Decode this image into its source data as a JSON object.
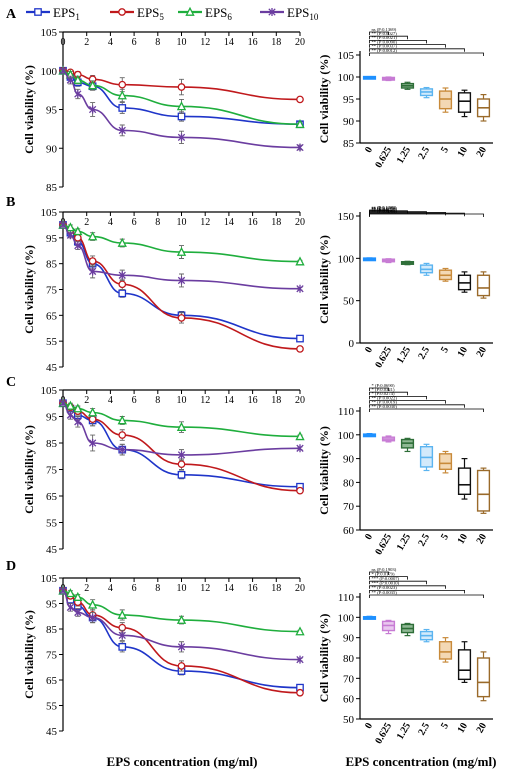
{
  "figure": {
    "x_axis_label": "EPS concentration (mg/ml)",
    "legend": [
      {
        "label_main": "EPS",
        "label_sub": "1",
        "color": "#1f35c9",
        "marker": "square"
      },
      {
        "label_main": "EPS",
        "label_sub": "5",
        "color": "#c0191c",
        "marker": "circle"
      },
      {
        "label_main": "EPS",
        "label_sub": "6",
        "color": "#1fae3d",
        "marker": "triangle"
      },
      {
        "label_main": "EPS",
        "label_sub": "10",
        "color": "#6b3da0",
        "marker": "star"
      }
    ]
  },
  "chart_data": [
    {
      "panel": "A",
      "type": "line",
      "ylabel": "Cell viability (%)",
      "x": [
        0,
        0.625,
        1.25,
        2.5,
        5,
        10,
        20
      ],
      "xticks": [
        0,
        2,
        4,
        6,
        8,
        10,
        12,
        14,
        16,
        18,
        20
      ],
      "ylim": [
        85,
        105
      ],
      "yticks": [
        85,
        90,
        95,
        100,
        105
      ],
      "xlim": [
        0,
        20
      ],
      "series": [
        {
          "name": "EPS1",
          "values": [
            100,
            99.2,
            98.5,
            98.0,
            95.2,
            94.1,
            93.1
          ],
          "err": [
            0.3,
            0.4,
            0.5,
            0.5,
            0.7,
            0.6,
            0.3
          ]
        },
        {
          "name": "EPS5",
          "values": [
            100,
            99.8,
            99.5,
            98.9,
            98.2,
            97.9,
            96.3
          ],
          "err": [
            0.3,
            0.3,
            0.4,
            0.5,
            0.9,
            1.0,
            0.2
          ]
        },
        {
          "name": "EPS6",
          "values": [
            100,
            99.5,
            98.8,
            98.1,
            96.8,
            95.4,
            93.1
          ],
          "err": [
            0.3,
            0.4,
            0.5,
            0.6,
            0.8,
            0.9,
            0.3
          ]
        },
        {
          "name": "EPS10",
          "values": [
            100,
            98.8,
            97.0,
            95.0,
            92.3,
            91.4,
            90.1
          ],
          "err": [
            0.3,
            0.5,
            0.6,
            0.9,
            0.7,
            0.8,
            0.3
          ]
        }
      ]
    },
    {
      "panel": "A",
      "type": "box",
      "ylabel": "Cell viability (%)",
      "categories": [
        "0",
        "0.625",
        "1.25",
        "2.5",
        "5",
        "10",
        "20"
      ],
      "ylim": [
        85,
        105
      ],
      "yticks": [
        85,
        90,
        95,
        100,
        105
      ],
      "boxes": [
        {
          "min": 99.9,
          "q1": 99.9,
          "median": 100,
          "q3": 100.1,
          "max": 100.1
        },
        {
          "min": 99.2,
          "q1": 99.3,
          "median": 99.6,
          "q3": 99.9,
          "max": 100.0
        },
        {
          "min": 97.2,
          "q1": 97.5,
          "median": 98.0,
          "q3": 98.5,
          "max": 98.8
        },
        {
          "min": 95.3,
          "q1": 95.8,
          "median": 96.6,
          "q3": 97.3,
          "max": 97.6
        },
        {
          "min": 92.0,
          "q1": 92.8,
          "median": 95.0,
          "q3": 96.8,
          "max": 97.5
        },
        {
          "min": 91.0,
          "q1": 92.0,
          "median": 94.5,
          "q3": 96.4,
          "max": 97.0
        },
        {
          "min": 90.0,
          "q1": 91.0,
          "median": 93.0,
          "q3": 95.0,
          "max": 96.0
        }
      ],
      "brackets": [
        {
          "target": 1,
          "label": "ns (P:0.1369)"
        },
        {
          "target": 2,
          "label": "** (P:0.0027)"
        },
        {
          "target": 3,
          "label": "** (P:0.0021)"
        },
        {
          "target": 4,
          "label": "** (P:0.0090)"
        },
        {
          "target": 5,
          "label": "** (P:0.0037)"
        },
        {
          "target": 6,
          "label": "** (P:0.0012)"
        }
      ]
    },
    {
      "panel": "B",
      "type": "line",
      "ylabel": "Cell viability (%)",
      "x": [
        0,
        0.625,
        1.25,
        2.5,
        5,
        10,
        20
      ],
      "xticks": [
        0,
        2,
        4,
        6,
        8,
        10,
        12,
        14,
        16,
        18,
        20
      ],
      "ylim": [
        45,
        105
      ],
      "yticks": [
        45,
        55,
        65,
        75,
        85,
        95,
        105
      ],
      "xlim": [
        0,
        20
      ],
      "series": [
        {
          "name": "EPS1",
          "values": [
            100,
            97.0,
            93.5,
            85.0,
            73.5,
            65.0,
            56.0
          ],
          "err": [
            0.5,
            1.0,
            1.5,
            2.0,
            1.5,
            1.5,
            0.5
          ]
        },
        {
          "name": "EPS5",
          "values": [
            100,
            98.0,
            95.0,
            86.0,
            77.0,
            64.0,
            52.0
          ],
          "err": [
            0.5,
            1.0,
            1.5,
            2.0,
            2.0,
            2.0,
            0.5
          ]
        },
        {
          "name": "EPS6",
          "values": [
            100,
            99.0,
            97.5,
            95.5,
            93.0,
            89.5,
            85.8
          ],
          "err": [
            0.5,
            1.0,
            1.0,
            1.5,
            1.5,
            2.5,
            0.5
          ]
        },
        {
          "name": "EPS10",
          "values": [
            100,
            96.0,
            92.0,
            82.0,
            80.5,
            78.5,
            75.3
          ],
          "err": [
            0.5,
            1.0,
            1.5,
            2.5,
            2.0,
            2.5,
            0.5
          ]
        }
      ]
    },
    {
      "panel": "B",
      "type": "box",
      "ylabel": "Cell viability (%)",
      "categories": [
        "0",
        "0.625",
        "1.25",
        "2.5",
        "5",
        "10",
        "20"
      ],
      "ylim": [
        0,
        150
      ],
      "yticks": [
        0,
        50,
        100,
        150
      ],
      "boxes": [
        {
          "min": 99.5,
          "q1": 99.7,
          "median": 100,
          "q3": 100.3,
          "max": 100.5
        },
        {
          "min": 95.0,
          "q1": 96.0,
          "median": 97.5,
          "q3": 99.0,
          "max": 99.5
        },
        {
          "min": 92.5,
          "q1": 93.0,
          "median": 94.5,
          "q3": 96.0,
          "max": 96.5
        },
        {
          "min": 80.0,
          "q1": 83.0,
          "median": 87.0,
          "q3": 92.0,
          "max": 94.0
        },
        {
          "min": 73.0,
          "q1": 75.0,
          "median": 80.0,
          "q3": 86.0,
          "max": 88.0
        },
        {
          "min": 60.0,
          "q1": 63.0,
          "median": 71.0,
          "q3": 80.0,
          "max": 84.0
        },
        {
          "min": 53.0,
          "q1": 56.0,
          "median": 65.0,
          "q3": 80.0,
          "max": 84.0
        }
      ],
      "brackets": [
        {
          "target": 1,
          "label": "ns (P:0.1369)"
        },
        {
          "target": 2,
          "label": "** (P:0.0086)"
        },
        {
          "target": 3,
          "label": "** (P:0.0058)"
        },
        {
          "target": 4,
          "label": "** (P:0.0040)"
        },
        {
          "target": 5,
          "label": "** (P:0.0063)"
        },
        {
          "target": 6,
          "label": "** (P:0.0066)"
        }
      ]
    },
    {
      "panel": "C",
      "type": "line",
      "ylabel": "Cell viability (%)",
      "x": [
        0,
        0.625,
        1.25,
        2.5,
        5,
        10,
        20
      ],
      "xticks": [
        0,
        2,
        4,
        6,
        8,
        10,
        12,
        14,
        16,
        18,
        20
      ],
      "ylim": [
        45,
        105
      ],
      "yticks": [
        45,
        55,
        65,
        75,
        85,
        95,
        105
      ],
      "xlim": [
        0,
        20
      ],
      "series": [
        {
          "name": "EPS1",
          "values": [
            100,
            98.0,
            95.5,
            93.5,
            82.5,
            73.0,
            68.5
          ],
          "err": [
            0.5,
            1.0,
            1.5,
            2.0,
            2.0,
            1.5,
            0.5
          ]
        },
        {
          "name": "EPS5",
          "values": [
            100,
            98.5,
            97.0,
            94.0,
            88.0,
            77.0,
            67.0
          ],
          "err": [
            0.5,
            1.0,
            1.5,
            2.5,
            2.0,
            2.0,
            0.5
          ]
        },
        {
          "name": "EPS6",
          "values": [
            100,
            99.0,
            98.0,
            96.5,
            93.5,
            91.0,
            87.5
          ],
          "err": [
            0.5,
            1.0,
            1.0,
            1.5,
            1.5,
            2.0,
            0.5
          ]
        },
        {
          "name": "EPS10",
          "values": [
            100,
            95.5,
            93.0,
            85.0,
            82.5,
            80.5,
            83.0
          ],
          "err": [
            0.5,
            1.5,
            2.0,
            3.0,
            2.0,
            2.0,
            0.5
          ]
        }
      ]
    },
    {
      "panel": "C",
      "type": "box",
      "ylabel": "Cell viability (%)",
      "categories": [
        "0",
        "0.625",
        "1.25",
        "2.5",
        "5",
        "10",
        "20"
      ],
      "ylim": [
        60,
        110
      ],
      "yticks": [
        60,
        70,
        80,
        90,
        100,
        110
      ],
      "boxes": [
        {
          "min": 99.5,
          "q1": 99.7,
          "median": 100,
          "q3": 100.3,
          "max": 100.5
        },
        {
          "min": 97.0,
          "q1": 97.5,
          "median": 98.2,
          "q3": 99.0,
          "max": 99.5
        },
        {
          "min": 93.0,
          "q1": 94.5,
          "median": 96.5,
          "q3": 98.0,
          "max": 98.5
        },
        {
          "min": 85.0,
          "q1": 86.5,
          "median": 90.5,
          "q3": 95.0,
          "max": 96.0
        },
        {
          "min": 84.0,
          "q1": 85.5,
          "median": 88.0,
          "q3": 92.0,
          "max": 93.0
        },
        {
          "min": 73.0,
          "q1": 75.0,
          "median": 79.0,
          "q3": 86.0,
          "max": 90.0
        },
        {
          "min": 67.0,
          "q1": 68.0,
          "median": 75.0,
          "q3": 85.0,
          "max": 86.0
        }
      ],
      "brackets": [
        {
          "target": 1,
          "label": "* (P:0.0690)"
        },
        {
          "target": 2,
          "label": "* (P:0.0321)"
        },
        {
          "target": 3,
          "label": "* (P:0.0274)"
        },
        {
          "target": 4,
          "label": "** (P:0.0022)"
        },
        {
          "target": 5,
          "label": "** (P:0.0019)"
        },
        {
          "target": 6,
          "label": "** (P:0.0030)"
        }
      ]
    },
    {
      "panel": "D",
      "type": "line",
      "ylabel": "Cell viability (%)",
      "x": [
        0,
        0.625,
        1.25,
        2.5,
        5,
        10,
        20
      ],
      "xticks": [
        0,
        2,
        4,
        6,
        8,
        10,
        12,
        14,
        16,
        18,
        20
      ],
      "ylim": [
        45,
        105
      ],
      "yticks": [
        45,
        55,
        65,
        75,
        85,
        95,
        105
      ],
      "xlim": [
        0,
        20
      ],
      "series": [
        {
          "name": "EPS1",
          "values": [
            100,
            96.5,
            94.0,
            89.5,
            78.0,
            68.5,
            62.0
          ],
          "err": [
            0.5,
            1.0,
            1.5,
            2.0,
            2.0,
            1.5,
            0.5
          ]
        },
        {
          "name": "EPS5",
          "values": [
            100,
            98.0,
            95.5,
            90.5,
            85.5,
            70.5,
            60.0
          ],
          "err": [
            0.5,
            1.0,
            1.5,
            2.0,
            2.0,
            2.0,
            0.5
          ]
        },
        {
          "name": "EPS6",
          "values": [
            100,
            99.0,
            97.5,
            94.5,
            90.5,
            88.5,
            84.0
          ],
          "err": [
            0.5,
            1.0,
            1.0,
            2.0,
            2.0,
            1.5,
            0.5
          ]
        },
        {
          "name": "EPS10",
          "values": [
            100,
            93.5,
            91.5,
            89.5,
            82.5,
            78.0,
            73.0
          ],
          "err": [
            0.5,
            1.5,
            1.5,
            2.0,
            2.0,
            2.0,
            0.5
          ]
        }
      ]
    },
    {
      "panel": "D",
      "type": "box",
      "ylabel": "Cell viability (%)",
      "categories": [
        "0",
        "0.625",
        "1.25",
        "2.5",
        "5",
        "10",
        "20"
      ],
      "ylim": [
        50,
        110
      ],
      "yticks": [
        50,
        60,
        70,
        80,
        90,
        100,
        110
      ],
      "boxes": [
        {
          "min": 99.5,
          "q1": 99.7,
          "median": 100,
          "q3": 100.3,
          "max": 100.5
        },
        {
          "min": 92.0,
          "q1": 93.5,
          "median": 96.0,
          "q3": 98.0,
          "max": 98.5
        },
        {
          "min": 91.0,
          "q1": 92.5,
          "median": 94.5,
          "q3": 96.5,
          "max": 97.0
        },
        {
          "min": 88.0,
          "q1": 89.0,
          "median": 91.0,
          "q3": 93.0,
          "max": 94.0
        },
        {
          "min": 78.0,
          "q1": 79.5,
          "median": 83.0,
          "q3": 88.0,
          "max": 90.0
        },
        {
          "min": 68.0,
          "q1": 69.5,
          "median": 74.0,
          "q3": 84.0,
          "max": 88.0
        },
        {
          "min": 59.0,
          "q1": 61.0,
          "median": 68.0,
          "q3": 80.0,
          "max": 83.0
        }
      ],
      "brackets": [
        {
          "target": 1,
          "label": "ns (P:0.1903)"
        },
        {
          "target": 2,
          "label": "* (P:0.0179)"
        },
        {
          "target": 3,
          "label": "*** (P:0.0007)"
        },
        {
          "target": 4,
          "label": "*** (P:0.0010)"
        },
        {
          "target": 5,
          "label": "** (P:0.0023)"
        },
        {
          "target": 6,
          "label": "** (P:0.0035)"
        }
      ]
    }
  ]
}
